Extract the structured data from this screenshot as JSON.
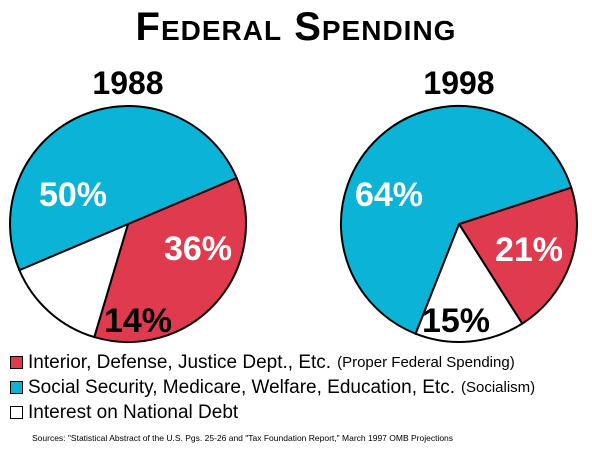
{
  "title": "Federal Spending",
  "colors": {
    "proper": "#e03a4e",
    "social": "#0bb3d6",
    "interest": "#ffffff",
    "outline": "#000000"
  },
  "chart_data": [
    {
      "type": "pie",
      "title": "1988",
      "slices": [
        {
          "key": "social",
          "value": 50,
          "label": "50%"
        },
        {
          "key": "proper",
          "value": 36,
          "label": "36%"
        },
        {
          "key": "interest",
          "value": 14,
          "label": "14%"
        }
      ]
    },
    {
      "type": "pie",
      "title": "1998",
      "slices": [
        {
          "key": "social",
          "value": 64,
          "label": "64%"
        },
        {
          "key": "proper",
          "value": 21,
          "label": "21%"
        },
        {
          "key": "interest",
          "value": 15,
          "label": "15%"
        }
      ]
    }
  ],
  "legend": [
    {
      "key": "proper",
      "label": "Interior, Defense, Justice Dept., Etc.",
      "note": "(Proper Federal Spending)"
    },
    {
      "key": "social",
      "label": "Social Security, Medicare, Welfare, Education, Etc.",
      "note": "(Socialism)"
    },
    {
      "key": "interest",
      "label": "Interest on National Debt",
      "note": ""
    }
  ],
  "source": "Sources: \"Statistical Abstract of the U.S. Pgs. 25-26 and \"Tax Foundation Report,\" March 1997 OMB Projections"
}
